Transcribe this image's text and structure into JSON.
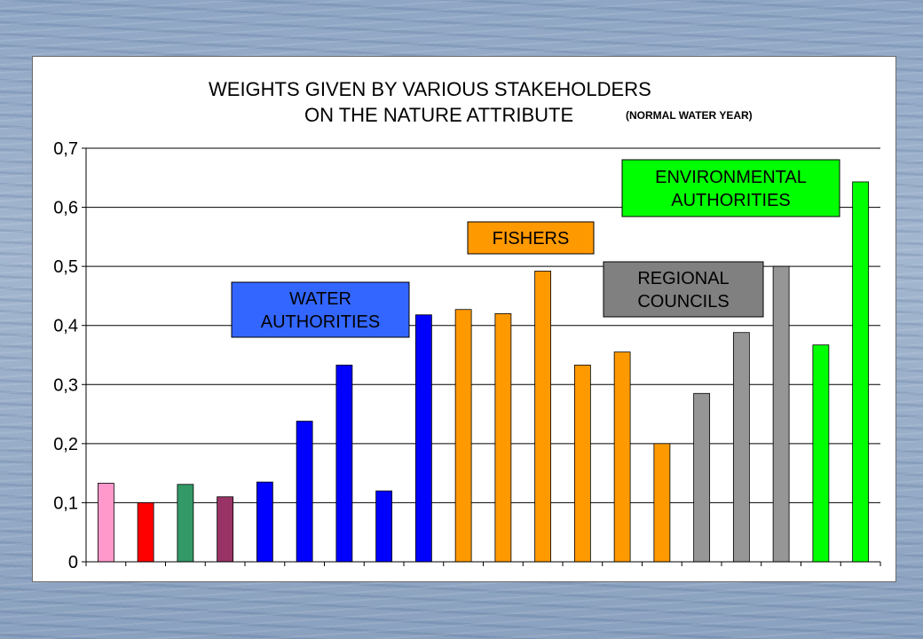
{
  "chart_data": {
    "type": "bar",
    "title_line1": "WEIGHTS GIVEN BY VARIOUS STAKEHOLDERS",
    "title_line2": "ON THE  NATURE ATTRIBUTE",
    "subtitle": "(NORMAL WATER YEAR)",
    "ylim": [
      0,
      0.7
    ],
    "yticks": [
      {
        "value": 0.0,
        "label": "0"
      },
      {
        "value": 0.1,
        "label": "0,1"
      },
      {
        "value": 0.2,
        "label": "0,2"
      },
      {
        "value": 0.3,
        "label": "0,3"
      },
      {
        "value": 0.4,
        "label": "0,4"
      },
      {
        "value": 0.5,
        "label": "0,5"
      },
      {
        "value": 0.6,
        "label": "0,6"
      },
      {
        "value": 0.7,
        "label": "0,7"
      }
    ],
    "grid": true,
    "bars": [
      {
        "value": 0.133,
        "color": "#ff99cc"
      },
      {
        "value": 0.1,
        "color": "#ff0000"
      },
      {
        "value": 0.131,
        "color": "#339966"
      },
      {
        "value": 0.11,
        "color": "#993366"
      },
      {
        "value": 0.135,
        "color": "#0000ff"
      },
      {
        "value": 0.238,
        "color": "#0000ff"
      },
      {
        "value": 0.333,
        "color": "#0000ff"
      },
      {
        "value": 0.12,
        "color": "#0000ff"
      },
      {
        "value": 0.418,
        "color": "#0000ff"
      },
      {
        "value": 0.427,
        "color": "#ff9900"
      },
      {
        "value": 0.42,
        "color": "#ff9900"
      },
      {
        "value": 0.492,
        "color": "#ff9900"
      },
      {
        "value": 0.333,
        "color": "#ff9900"
      },
      {
        "value": 0.355,
        "color": "#ff9900"
      },
      {
        "value": 0.2,
        "color": "#ff9900"
      },
      {
        "value": 0.285,
        "color": "#969696"
      },
      {
        "value": 0.388,
        "color": "#969696"
      },
      {
        "value": 0.5,
        "color": "#969696"
      },
      {
        "value": 0.367,
        "color": "#00ff00"
      },
      {
        "value": 0.643,
        "color": "#00ff00"
      }
    ],
    "group_labels": [
      {
        "lines": [
          "WATER",
          "AUTHORITIES"
        ],
        "bg": "#3366ff"
      },
      {
        "lines": [
          "FISHERS"
        ],
        "bg": "#ff9900"
      },
      {
        "lines": [
          "REGIONAL",
          "COUNCILS"
        ],
        "bg": "#808080"
      },
      {
        "lines": [
          "ENVIRONMENTAL",
          "AUTHORITIES"
        ],
        "bg": "#00ff00"
      }
    ]
  }
}
